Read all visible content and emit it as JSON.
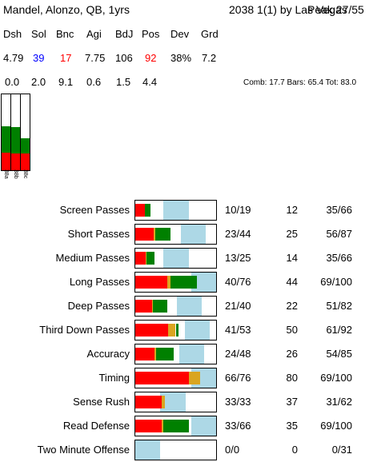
{
  "header": {
    "name": "Mandel, Alonzo, QB, 1yrs",
    "draft": "2038 1(1) by Las Vegas",
    "peak": "Peak 27/55"
  },
  "columns": {
    "headers": [
      "Dsh",
      "Sol",
      "Bnc",
      "Agi",
      "BdJ",
      "Pos",
      "Dev",
      "Grd"
    ],
    "values": [
      "4.79",
      "39",
      "17",
      "7.75",
      "106",
      "92",
      "38%",
      "7.2"
    ],
    "values2": [
      "0.0",
      "2.0",
      "9.1",
      "0.6",
      "1.5",
      "4.4"
    ]
  },
  "colors": {
    "sol": "#0000ff",
    "bnc": "#ff0000",
    "pos": "#ff0000",
    "red": "#ff0000",
    "green": "#008000",
    "gold": "#daa520",
    "blue": "#add8e6"
  },
  "bars_summary": "Comb: 17.7 Bars: 65.4 Tot: 83.0",
  "vbars": [
    {
      "label": "38a",
      "green": 0.35,
      "red": 0.23
    },
    {
      "label": "38b",
      "green": 0.35,
      "red": 0.22
    },
    {
      "label": "38c",
      "green": 0.2,
      "red": 0.22
    }
  ],
  "skills": [
    {
      "label": "Screen Passes",
      "a": "10/19",
      "b": "12",
      "c": "35/66",
      "red": 0.12,
      "gold": 0.0,
      "green": 0.07,
      "blue_start": 0.35,
      "blue_end": 0.66
    },
    {
      "label": "Short Passes",
      "a": "23/44",
      "b": "25",
      "c": "56/87",
      "red": 0.23,
      "gold": 0.02,
      "green": 0.19,
      "blue_start": 0.56,
      "blue_end": 0.87
    },
    {
      "label": "Medium Passes",
      "a": "13/25",
      "b": "14",
      "c": "35/66",
      "red": 0.13,
      "gold": 0.01,
      "green": 0.1,
      "blue_start": 0.35,
      "blue_end": 0.66
    },
    {
      "label": "Long Passes",
      "a": "40/76",
      "b": "44",
      "c": "69/100",
      "red": 0.4,
      "gold": 0.04,
      "green": 0.32,
      "blue_start": 0.69,
      "blue_end": 1.0
    },
    {
      "label": "Deep Passes",
      "a": "21/40",
      "b": "22",
      "c": "51/82",
      "red": 0.21,
      "gold": 0.01,
      "green": 0.18,
      "blue_start": 0.51,
      "blue_end": 0.82
    },
    {
      "label": "Third Down Passes",
      "a": "41/53",
      "b": "50",
      "c": "61/92",
      "red": 0.41,
      "gold": 0.09,
      "green": 0.03,
      "blue_start": 0.61,
      "blue_end": 0.92
    },
    {
      "label": "Accuracy",
      "a": "24/48",
      "b": "26",
      "c": "54/85",
      "red": 0.24,
      "gold": 0.02,
      "green": 0.22,
      "blue_start": 0.54,
      "blue_end": 0.85
    },
    {
      "label": "Timing",
      "a": "66/76",
      "b": "80",
      "c": "69/100",
      "red": 0.66,
      "gold": 0.14,
      "green": 0.0,
      "blue_start": 0.69,
      "blue_end": 1.0
    },
    {
      "label": "Sense Rush",
      "a": "33/33",
      "b": "37",
      "c": "31/62",
      "red": 0.33,
      "gold": 0.04,
      "green": 0.0,
      "blue_start": 0.31,
      "blue_end": 0.62
    },
    {
      "label": "Read Defense",
      "a": "33/66",
      "b": "35",
      "c": "69/100",
      "red": 0.33,
      "gold": 0.02,
      "green": 0.31,
      "blue_start": 0.69,
      "blue_end": 1.0
    },
    {
      "label": "Two Minute Offense",
      "a": "0/0",
      "b": "0",
      "c": "0/31",
      "red": 0.0,
      "gold": 0.0,
      "green": 0.0,
      "blue_start": 0.0,
      "blue_end": 0.31
    }
  ]
}
